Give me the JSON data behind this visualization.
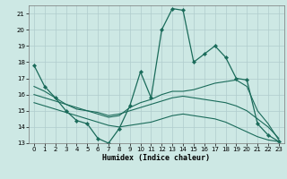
{
  "xlabel": "Humidex (Indice chaleur)",
  "background_color": "#cde8e4",
  "grid_color": "#b0cccc",
  "line_color": "#1a6b5a",
  "xlim_min": -0.5,
  "xlim_max": 23.5,
  "ylim_min": 13,
  "ylim_max": 21.5,
  "yticks": [
    13,
    14,
    15,
    16,
    17,
    18,
    19,
    20,
    21
  ],
  "xticks": [
    0,
    1,
    2,
    3,
    4,
    5,
    6,
    7,
    8,
    9,
    10,
    11,
    12,
    13,
    14,
    15,
    16,
    17,
    18,
    19,
    20,
    21,
    22,
    23
  ],
  "line1_x": [
    0,
    1,
    2,
    3,
    4,
    5,
    6,
    7,
    8,
    9,
    10,
    11,
    12,
    13,
    14,
    15,
    16,
    17,
    18,
    19,
    20,
    21,
    22,
    23
  ],
  "line1_y": [
    17.8,
    16.5,
    15.8,
    15.0,
    14.4,
    14.2,
    13.3,
    13.0,
    13.9,
    15.3,
    17.4,
    15.8,
    20.0,
    21.3,
    21.2,
    18.0,
    18.5,
    19.0,
    18.3,
    17.0,
    16.9,
    14.2,
    13.5,
    13.1
  ],
  "line2_x": [
    0,
    1,
    2,
    3,
    4,
    5,
    6,
    7,
    8,
    9,
    10,
    11,
    12,
    13,
    14,
    15,
    16,
    17,
    18,
    19,
    20,
    21,
    22,
    23
  ],
  "line2_y": [
    16.5,
    16.2,
    15.8,
    15.4,
    15.1,
    15.0,
    14.8,
    14.6,
    14.7,
    15.2,
    15.5,
    15.7,
    16.0,
    16.2,
    16.2,
    16.3,
    16.5,
    16.7,
    16.8,
    16.9,
    16.5,
    15.0,
    14.2,
    13.2
  ],
  "line3_x": [
    0,
    1,
    2,
    3,
    4,
    5,
    6,
    7,
    8,
    9,
    10,
    11,
    12,
    13,
    14,
    15,
    16,
    17,
    18,
    19,
    20,
    21,
    22,
    23
  ],
  "line3_y": [
    16.0,
    15.8,
    15.6,
    15.4,
    15.2,
    15.0,
    14.9,
    14.7,
    14.8,
    15.0,
    15.2,
    15.4,
    15.6,
    15.8,
    15.9,
    15.8,
    15.7,
    15.6,
    15.5,
    15.3,
    15.0,
    14.5,
    14.0,
    13.3
  ],
  "line4_x": [
    0,
    1,
    2,
    3,
    4,
    5,
    6,
    7,
    8,
    9,
    10,
    11,
    12,
    13,
    14,
    15,
    16,
    17,
    18,
    19,
    20,
    21,
    22,
    23
  ],
  "line4_y": [
    15.5,
    15.3,
    15.1,
    14.9,
    14.7,
    14.5,
    14.3,
    14.1,
    14.0,
    14.1,
    14.2,
    14.3,
    14.5,
    14.7,
    14.8,
    14.7,
    14.6,
    14.5,
    14.3,
    14.0,
    13.7,
    13.4,
    13.2,
    13.1
  ]
}
